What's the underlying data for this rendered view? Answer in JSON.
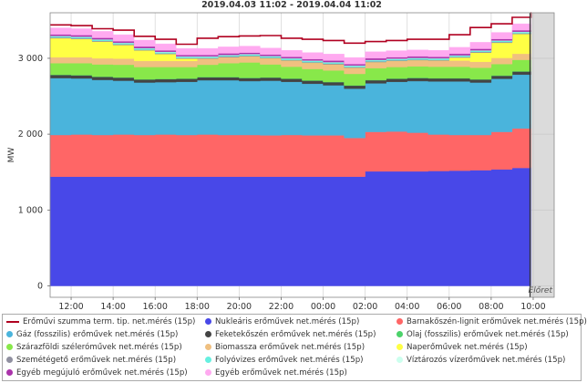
{
  "chart_data": {
    "type": "area",
    "stacked": true,
    "title": "2019.04.03 11:02 - 2019.04.04 11:02",
    "ylabel": "MW",
    "ylim": [
      -150,
      3600
    ],
    "yticks": [
      0,
      1000,
      2000,
      3000
    ],
    "ytick_labels": [
      "0",
      "1 000",
      "2 000",
      "3 000"
    ],
    "xlim": [
      11.0,
      35.0
    ],
    "xticks": [
      12,
      14,
      16,
      18,
      20,
      22,
      24,
      26,
      28,
      30,
      32,
      34
    ],
    "xtick_labels": [
      "12:00",
      "14:00",
      "16:00",
      "18:00",
      "20:00",
      "22:00",
      "00:00",
      "02:00",
      "04:00",
      "06:00",
      "08:00",
      "10:00"
    ],
    "forecast_start": 33.85,
    "forecast_label": "Előret",
    "grid": true,
    "x": [
      11,
      12,
      13,
      14,
      15,
      16,
      17,
      18,
      19,
      20,
      21,
      22,
      23,
      24,
      25,
      26,
      27,
      28,
      29,
      30,
      31,
      32,
      33,
      33.9
    ],
    "series": [
      {
        "name": "Nukleáris erőművek net.mérés (15p)",
        "color": "#4848e8",
        "values": [
          1440,
          1440,
          1440,
          1440,
          1440,
          1440,
          1440,
          1440,
          1440,
          1440,
          1440,
          1440,
          1440,
          1440,
          1440,
          1510,
          1510,
          1510,
          1515,
          1520,
          1525,
          1535,
          1555,
          1575
        ]
      },
      {
        "name": "Barnakőszén-lignit erőművek net.mérés (15p)",
        "color": "#ff6666",
        "values": [
          550,
          555,
          550,
          555,
          550,
          555,
          550,
          555,
          550,
          550,
          545,
          550,
          545,
          545,
          510,
          520,
          525,
          510,
          480,
          470,
          465,
          495,
          520,
          555
        ]
      },
      {
        "name": "Gáz (fosszilis) erőművek net.mérés (15p)",
        "color": "#4ab4dc",
        "values": [
          750,
          740,
          725,
          710,
          690,
          690,
          700,
          715,
          720,
          710,
          720,
          700,
          680,
          660,
          650,
          640,
          655,
          680,
          700,
          705,
          690,
          700,
          710,
          705
        ]
      },
      {
        "name": "Feketekőszén erőművek net.mérés (15p)",
        "color": "#444444",
        "values": [
          40,
          40,
          40,
          40,
          40,
          40,
          40,
          40,
          40,
          40,
          40,
          40,
          40,
          40,
          40,
          40,
          40,
          40,
          40,
          40,
          40,
          40,
          40,
          40
        ]
      },
      {
        "name": "Olaj (fosszilis) erőművek net.mérés (15p)",
        "color": "#4cd26a",
        "values": [
          5,
          5,
          5,
          5,
          5,
          5,
          5,
          5,
          5,
          5,
          5,
          5,
          5,
          5,
          5,
          5,
          5,
          5,
          5,
          5,
          5,
          5,
          5,
          5
        ]
      },
      {
        "name": "Szárazföldi széleróművek net.mérés (15p)",
        "color": "#88e84a",
        "values": [
          150,
          155,
          160,
          165,
          160,
          155,
          150,
          160,
          180,
          200,
          170,
          155,
          150,
          150,
          150,
          155,
          150,
          150,
          150,
          150,
          150,
          150,
          150,
          145
        ]
      },
      {
        "name": "Biomassza erőművek net.mérés (15p)",
        "color": "#f0c080",
        "values": [
          80,
          80,
          80,
          80,
          80,
          80,
          80,
          80,
          80,
          80,
          80,
          80,
          80,
          80,
          80,
          80,
          80,
          80,
          80,
          80,
          80,
          80,
          80,
          80
        ]
      },
      {
        "name": "Naperőművek net.mérés (15p)",
        "color": "#ffff44",
        "values": [
          250,
          240,
          220,
          180,
          140,
          90,
          30,
          0,
          0,
          0,
          0,
          0,
          0,
          0,
          0,
          0,
          0,
          0,
          0,
          40,
          120,
          200,
          260,
          290
        ]
      },
      {
        "name": "Szemétégető erőművek net.mérés (15p)",
        "color": "#9090a0",
        "values": [
          10,
          10,
          10,
          10,
          10,
          10,
          10,
          10,
          10,
          10,
          10,
          10,
          10,
          10,
          10,
          10,
          10,
          10,
          10,
          10,
          10,
          10,
          10,
          10
        ]
      },
      {
        "name": "Folyóvizes erőművek net.mérés (15p)",
        "color": "#66f0e0",
        "values": [
          15,
          15,
          15,
          15,
          15,
          15,
          15,
          15,
          15,
          15,
          15,
          15,
          15,
          15,
          15,
          15,
          15,
          15,
          15,
          15,
          15,
          15,
          15,
          15
        ]
      },
      {
        "name": "Víztározós vízerőművek net.mérés (15p)",
        "color": "#ccffee",
        "values": [
          5,
          5,
          5,
          5,
          5,
          5,
          5,
          5,
          5,
          5,
          5,
          5,
          5,
          5,
          5,
          5,
          5,
          5,
          5,
          5,
          5,
          5,
          5,
          5
        ]
      },
      {
        "name": "Egyéb megújuló erőművek net.mérés (15p)",
        "color": "#aa33aa",
        "values": [
          20,
          20,
          20,
          20,
          20,
          20,
          20,
          20,
          20,
          20,
          20,
          20,
          20,
          20,
          20,
          20,
          20,
          20,
          20,
          20,
          20,
          20,
          20,
          20
        ]
      },
      {
        "name": "Egyéb erőművek net.mérés (15p)",
        "color": "#ffaaf0",
        "values": [
          85,
          85,
          85,
          85,
          85,
          85,
          85,
          85,
          85,
          85,
          85,
          85,
          85,
          85,
          85,
          85,
          85,
          85,
          85,
          85,
          85,
          85,
          85,
          85
        ]
      }
    ],
    "total_line": {
      "name": "Erőművi szumma term. tip. net.mérés (15p)",
      "color": "#b00020",
      "values": [
        3440,
        3430,
        3390,
        3370,
        3290,
        3250,
        3185,
        3265,
        3285,
        3295,
        3300,
        3265,
        3250,
        3235,
        3200,
        3220,
        3235,
        3250,
        3250,
        3310,
        3405,
        3455,
        3540,
        3600
      ]
    },
    "legend": [
      {
        "label": "Erőművi szumma term. tip. net.mérés (15p)",
        "color": "#b00020",
        "kind": "line"
      },
      {
        "label": "Nukleáris erőművek net.mérés (15p)",
        "color": "#4848e8",
        "kind": "dot"
      },
      {
        "label": "Barnakőszén-lignit erőművek net.mérés (15p)",
        "color": "#ff6666",
        "kind": "dot"
      },
      {
        "label": "Gáz (fosszilis) erőművek net.mérés (15p)",
        "color": "#4ab4dc",
        "kind": "dot"
      },
      {
        "label": "Feketekőszén erőművek net.mérés (15p)",
        "color": "#444444",
        "kind": "dot"
      },
      {
        "label": "Olaj (fosszilis) erőművek net.mérés (15p)",
        "color": "#4cd26a",
        "kind": "dot"
      },
      {
        "label": "Szárazföldi széleróművek net.mérés (15p)",
        "color": "#88e84a",
        "kind": "dot"
      },
      {
        "label": "Biomassza erőművek net.mérés (15p)",
        "color": "#f0c080",
        "kind": "dot"
      },
      {
        "label": "Naperőművek net.mérés (15p)",
        "color": "#ffff44",
        "kind": "dot"
      },
      {
        "label": "Szemétégető erőművek net.mérés (15p)",
        "color": "#9090a0",
        "kind": "dot"
      },
      {
        "label": "Folyóvizes erőművek net.mérés (15p)",
        "color": "#66f0e0",
        "kind": "dot"
      },
      {
        "label": "Víztározós vízerőművek net.mérés (15p)",
        "color": "#ccffee",
        "kind": "dot"
      },
      {
        "label": "Egyéb megújuló erőművek net.mérés (15p)",
        "color": "#aa33aa",
        "kind": "dot"
      },
      {
        "label": "Egyéb erőművek net.mérés (15p)",
        "color": "#ffaaf0",
        "kind": "dot"
      }
    ]
  }
}
